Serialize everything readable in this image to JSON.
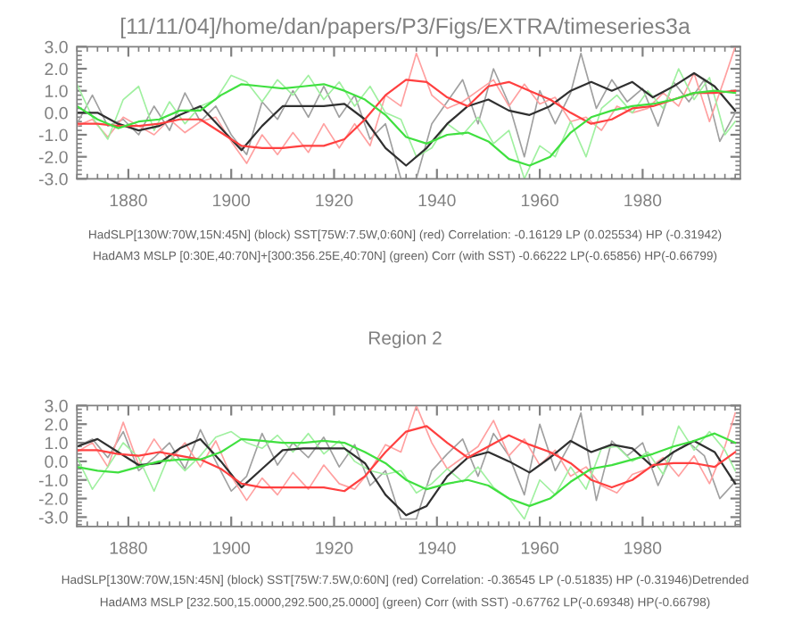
{
  "chart_data": [
    {
      "type": "line",
      "title": "[11/11/04]/home/dan/papers/P3/Figs/EXTRA/timeseries3a",
      "x": [
        1870,
        1874,
        1878,
        1882,
        1886,
        1890,
        1894,
        1898,
        1902,
        1906,
        1910,
        1914,
        1918,
        1922,
        1926,
        1930,
        1934,
        1938,
        1942,
        1946,
        1950,
        1954,
        1958,
        1962,
        1966,
        1970,
        1974,
        1978,
        1982,
        1986,
        1990,
        1994,
        1998
      ],
      "xlim": [
        1870,
        1999
      ],
      "xticks": [
        1880,
        1900,
        1920,
        1940,
        1960,
        1980
      ],
      "ylim": [
        -3.0,
        3.0
      ],
      "yticks": [
        {
          "value": -3,
          "label": "-3.0"
        },
        {
          "value": -2,
          "label": "-2.0"
        },
        {
          "value": -1,
          "label": "-1.0"
        },
        {
          "value": 0,
          "label": "0.0"
        },
        {
          "value": 1,
          "label": "1.0"
        },
        {
          "value": 2,
          "label": "2.0"
        },
        {
          "value": 3,
          "label": "3.0"
        }
      ],
      "grid": false,
      "legend": false,
      "series": [
        {
          "color": "#a0a0a0",
          "x": [
            1870,
            1873,
            1876,
            1879,
            1882,
            1885,
            1888,
            1891,
            1894,
            1897,
            1900,
            1903,
            1906,
            1909,
            1912,
            1915,
            1918,
            1921,
            1924,
            1927,
            1930,
            1933,
            1936,
            1939,
            1942,
            1945,
            1948,
            1951,
            1954,
            1957,
            1960,
            1963,
            1966,
            1968,
            1971,
            1974,
            1977,
            1980,
            1983,
            1986,
            1989,
            1992,
            1995,
            1998
          ],
          "values": [
            -0.5,
            0.8,
            -0.6,
            -0.3,
            -1.0,
            0.3,
            -0.8,
            0.9,
            -0.4,
            0.3,
            -1.0,
            -1.9,
            0.5,
            -0.3,
            1.0,
            -0.2,
            1.2,
            -0.2,
            0.8,
            -1.2,
            -0.5,
            -3.0,
            -3.0,
            -0.5,
            0.5,
            1.5,
            -0.5,
            2.0,
            0.4,
            -2.0,
            1.0,
            -0.5,
            0.9,
            2.7,
            0.2,
            1.5,
            0.5,
            1.1,
            -0.6,
            1.4,
            0.5,
            1.5,
            -1.3,
            0.0
          ]
        },
        {
          "color": "#ffa0a0",
          "x": [
            1870,
            1873,
            1876,
            1879,
            1882,
            1885,
            1888,
            1891,
            1894,
            1897,
            1900,
            1903,
            1906,
            1909,
            1912,
            1915,
            1918,
            1921,
            1924,
            1927,
            1930,
            1933,
            1936,
            1939,
            1942,
            1945,
            1948,
            1951,
            1954,
            1957,
            1960,
            1963,
            1966,
            1969,
            1972,
            1975,
            1978,
            1981,
            1984,
            1987,
            1990,
            1993,
            1996,
            1998
          ],
          "values": [
            -0.6,
            -0.3,
            -1.1,
            -0.2,
            -0.6,
            -1.0,
            -0.3,
            -0.9,
            -0.4,
            -0.2,
            -1.3,
            -2.3,
            -1.0,
            -1.9,
            -0.9,
            -1.8,
            -0.5,
            -1.6,
            -0.5,
            -1.5,
            0.8,
            0.3,
            2.7,
            0.8,
            0.2,
            0.5,
            1.0,
            1.5,
            0.3,
            1.3,
            0.4,
            0.7,
            -0.4,
            -0.2,
            -0.8,
            0.3,
            0.0,
            0.2,
            0.9,
            0.3,
            1.8,
            -0.4,
            1.6,
            3.0
          ]
        },
        {
          "color": "#a0f0a0",
          "x": [
            1870,
            1873,
            1876,
            1879,
            1882,
            1885,
            1888,
            1891,
            1894,
            1897,
            1900,
            1903,
            1906,
            1909,
            1912,
            1915,
            1918,
            1921,
            1924,
            1927,
            1930,
            1933,
            1936,
            1939,
            1942,
            1945,
            1948,
            1951,
            1954,
            1957,
            1960,
            1963,
            1966,
            1969,
            1972,
            1975,
            1978,
            1981,
            1984,
            1987,
            1990,
            1993,
            1996,
            1998
          ],
          "values": [
            1.3,
            -0.2,
            -1.2,
            0.6,
            1.2,
            -0.8,
            0.5,
            -0.5,
            0.3,
            0.6,
            1.7,
            1.4,
            0.5,
            1.5,
            0.8,
            1.7,
            0.6,
            1.4,
            0.3,
            1.2,
            0.0,
            -0.3,
            -2.0,
            -1.6,
            -0.5,
            -1.0,
            -0.2,
            -1.4,
            -0.8,
            -3.0,
            -1.5,
            -2.0,
            -0.4,
            -2.0,
            0.2,
            0.8,
            0.0,
            1.0,
            0.2,
            2.0,
            0.6,
            1.6,
            -1.0,
            -0.4
          ]
        },
        {
          "color": "#303030",
          "values": [
            0.0,
            0.0,
            -0.5,
            -0.8,
            -0.6,
            -0.1,
            0.3,
            -0.7,
            -1.7,
            -0.6,
            0.3,
            0.3,
            0.3,
            0.4,
            -0.3,
            -1.6,
            -2.4,
            -1.6,
            -0.5,
            0.3,
            0.6,
            0.1,
            -0.1,
            0.3,
            1.0,
            1.4,
            1.0,
            1.4,
            0.7,
            1.2,
            1.8,
            1.2,
            0.1
          ]
        },
        {
          "color": "#ff4040",
          "values": [
            -0.5,
            -0.5,
            -0.6,
            -0.6,
            -0.5,
            -0.3,
            -0.3,
            -0.9,
            -1.5,
            -1.6,
            -1.6,
            -1.5,
            -1.5,
            -1.2,
            -0.3,
            0.8,
            1.5,
            1.4,
            0.7,
            0.3,
            1.2,
            1.4,
            1.0,
            0.6,
            0.0,
            -0.5,
            -0.3,
            0.2,
            0.3,
            0.6,
            0.9,
            0.9,
            1.0
          ]
        },
        {
          "color": "#40e040",
          "values": [
            0.3,
            -0.3,
            -0.7,
            -0.4,
            -0.3,
            0.1,
            0.1,
            0.8,
            1.3,
            1.2,
            1.1,
            1.2,
            1.3,
            1.0,
            0.6,
            -0.1,
            -1.1,
            -1.4,
            -1.0,
            -0.9,
            -1.3,
            -2.1,
            -2.4,
            -2.0,
            -0.9,
            -0.2,
            0.1,
            0.3,
            0.4,
            0.6,
            0.9,
            1.0,
            0.9
          ]
        }
      ],
      "annotations": [
        "HadSLP[130W:70W,15N:45N] (block) SST[75W:7.5W,0:60N] (red) Correlation: -0.16129 LP (0.025534) HP (-0.31942)",
        "HadAM3 MSLP [0:30E,40:70N]+[300:356.25E,40:70N] (green) Corr (with SST) -0.66222 LP(-0.65856) HP(-0.66799)"
      ]
    },
    {
      "type": "line",
      "title": "Region 2",
      "x": [
        1870,
        1874,
        1878,
        1882,
        1886,
        1890,
        1894,
        1898,
        1902,
        1906,
        1910,
        1914,
        1918,
        1922,
        1926,
        1930,
        1934,
        1938,
        1942,
        1946,
        1950,
        1954,
        1958,
        1962,
        1966,
        1970,
        1974,
        1978,
        1982,
        1986,
        1990,
        1994,
        1998
      ],
      "xlim": [
        1870,
        1999
      ],
      "xticks": [
        1880,
        1900,
        1920,
        1940,
        1960,
        1980
      ],
      "ylim": [
        -3.5,
        3.0
      ],
      "yticks": [
        {
          "value": -3,
          "label": "-3.0"
        },
        {
          "value": -2,
          "label": "-2.0"
        },
        {
          "value": -1,
          "label": "-1.0"
        },
        {
          "value": 0,
          "label": "0.0"
        },
        {
          "value": 1,
          "label": "1.0"
        },
        {
          "value": 2,
          "label": "2.0"
        },
        {
          "value": 3,
          "label": "3.0"
        }
      ],
      "grid": false,
      "legend": false,
      "series": [
        {
          "color": "#a0a0a0",
          "x": [
            1870,
            1873,
            1876,
            1879,
            1882,
            1885,
            1888,
            1891,
            1894,
            1897,
            1900,
            1903,
            1906,
            1909,
            1912,
            1915,
            1918,
            1921,
            1924,
            1927,
            1930,
            1933,
            1936,
            1939,
            1942,
            1945,
            1948,
            1951,
            1954,
            1957,
            1960,
            1963,
            1966,
            1968,
            1971,
            1974,
            1977,
            1980,
            1983,
            1986,
            1989,
            1992,
            1995,
            1998
          ],
          "values": [
            0.8,
            1.2,
            0.2,
            1.6,
            -0.5,
            0.2,
            1.0,
            -0.4,
            1.7,
            0.0,
            -1.6,
            -0.8,
            1.5,
            -0.2,
            1.0,
            0.2,
            1.3,
            -0.3,
            0.9,
            -1.3,
            -0.5,
            -3.1,
            -3.1,
            -0.5,
            0.4,
            1.2,
            -0.8,
            1.5,
            0.3,
            -1.8,
            2.0,
            -0.5,
            1.0,
            2.6,
            -2.1,
            1.1,
            0.3,
            1.0,
            -1.3,
            0.5,
            1.0,
            0.3,
            -2.0,
            -1.1
          ]
        },
        {
          "color": "#ffa0a0",
          "x": [
            1870,
            1873,
            1876,
            1879,
            1882,
            1885,
            1888,
            1891,
            1894,
            1897,
            1900,
            1903,
            1906,
            1909,
            1912,
            1915,
            1918,
            1921,
            1924,
            1927,
            1930,
            1933,
            1936,
            1939,
            1942,
            1945,
            1948,
            1951,
            1954,
            1957,
            1960,
            1963,
            1966,
            1969,
            1972,
            1975,
            1978,
            1981,
            1984,
            1987,
            1990,
            1993,
            1996,
            1998
          ],
          "values": [
            0.5,
            1.0,
            -0.3,
            2.1,
            -0.2,
            1.2,
            0.0,
            1.0,
            -0.3,
            1.1,
            -0.8,
            -2.1,
            -0.9,
            -1.8,
            -0.6,
            -1.5,
            -0.2,
            -1.2,
            -1.5,
            -0.5,
            0.9,
            0.5,
            3.0,
            1.0,
            -0.4,
            0.2,
            0.8,
            2.2,
            0.3,
            1.2,
            -0.2,
            0.6,
            -0.8,
            -0.3,
            -1.3,
            -1.7,
            -0.7,
            -0.4,
            0.2,
            -0.8,
            0.3,
            -1.2,
            0.8,
            2.6
          ]
        },
        {
          "color": "#a0f0a0",
          "x": [
            1870,
            1873,
            1876,
            1879,
            1882,
            1885,
            1888,
            1891,
            1894,
            1897,
            1900,
            1903,
            1906,
            1909,
            1912,
            1915,
            1918,
            1921,
            1924,
            1927,
            1930,
            1933,
            1936,
            1939,
            1942,
            1945,
            1948,
            1951,
            1954,
            1957,
            1960,
            1963,
            1966,
            1969,
            1972,
            1975,
            1978,
            1981,
            1984,
            1987,
            1990,
            1993,
            1996,
            1998
          ],
          "values": [
            0.2,
            -1.5,
            -0.3,
            1.0,
            0.2,
            -1.6,
            0.4,
            -0.5,
            0.3,
            1.3,
            1.6,
            1.0,
            0.7,
            1.4,
            0.5,
            1.5,
            0.4,
            1.1,
            0.0,
            -0.5,
            -0.7,
            -0.5,
            -1.7,
            -1.2,
            -0.4,
            -1.1,
            -0.3,
            -1.4,
            -2.0,
            -3.1,
            -1.0,
            -1.8,
            -0.3,
            -1.5,
            0.7,
            0.8,
            0.0,
            0.5,
            -0.7,
            1.9,
            0.6,
            1.6,
            0.6,
            -0.5
          ]
        },
        {
          "color": "#303030",
          "values": [
            0.8,
            1.2,
            0.5,
            -0.2,
            -0.1,
            0.7,
            1.2,
            0.0,
            -1.4,
            -0.4,
            0.6,
            0.7,
            0.7,
            0.7,
            -0.1,
            -1.8,
            -2.9,
            -2.4,
            -0.8,
            0.2,
            0.5,
            0.0,
            -0.6,
            0.2,
            1.1,
            0.5,
            0.9,
            0.7,
            -0.3,
            0.5,
            1.1,
            0.5,
            -1.2
          ]
        },
        {
          "color": "#ff4040",
          "values": [
            0.6,
            0.6,
            0.4,
            0.3,
            0.5,
            0.3,
            0.1,
            -0.4,
            -1.2,
            -1.4,
            -1.4,
            -1.4,
            -1.4,
            -1.6,
            -0.8,
            0.5,
            1.6,
            1.9,
            1.0,
            0.2,
            0.8,
            1.4,
            0.9,
            0.5,
            -0.1,
            -1.0,
            -1.4,
            -1.0,
            -0.2,
            -0.1,
            -0.1,
            -0.3,
            0.5
          ]
        },
        {
          "color": "#40e040",
          "values": [
            -0.3,
            -0.5,
            -0.6,
            -0.3,
            0.0,
            0.1,
            0.1,
            0.5,
            1.2,
            1.1,
            1.0,
            1.0,
            1.1,
            1.0,
            0.5,
            -0.1,
            -1.0,
            -1.5,
            -1.2,
            -1.0,
            -1.3,
            -2.0,
            -2.4,
            -2.0,
            -1.1,
            -0.4,
            -0.2,
            0.1,
            0.4,
            0.8,
            1.1,
            1.5,
            1.0
          ]
        }
      ],
      "annotations": [
        "HadSLP[130W:70W,15N:45N] (block) SST[75W:7.5W,0:60N] (red) Correlation: -0.36545 LP (-0.51835) HP (-0.31946)Detrended",
        "HadAM3 MSLP [232.500,15.0000,292.500,25.0000] (green) Corr (with SST) -0.67762 LP(-0.69348) HP(-0.66798)"
      ]
    }
  ]
}
